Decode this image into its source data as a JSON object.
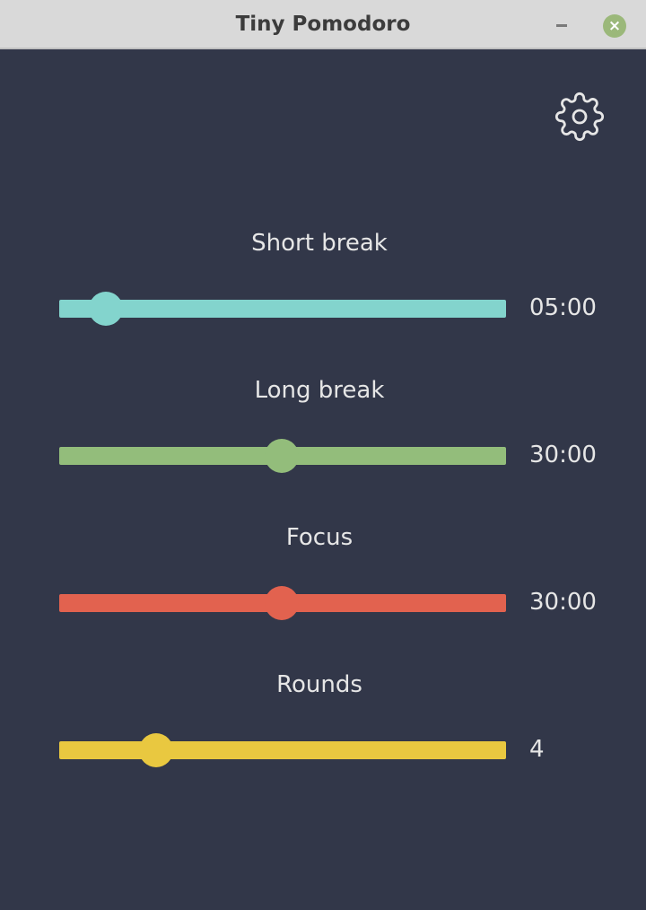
{
  "window": {
    "title": "Tiny Pomodoro",
    "minimize_icon": "minimize-icon",
    "close_icon": "close-icon",
    "close_glyph": "×"
  },
  "settings_icon": "gear-icon",
  "sliders": [
    {
      "label": "Short break",
      "value": "05:00",
      "fraction": 0.104,
      "color": "#83d4cd"
    },
    {
      "label": "Long break",
      "value": "30:00",
      "fraction": 0.498,
      "color": "#93bd7b"
    },
    {
      "label": "Focus",
      "value": "30:00",
      "fraction": 0.498,
      "color": "#e2624f"
    },
    {
      "label": "Rounds",
      "value": "4",
      "fraction": 0.217,
      "color": "#e9c840"
    }
  ]
}
